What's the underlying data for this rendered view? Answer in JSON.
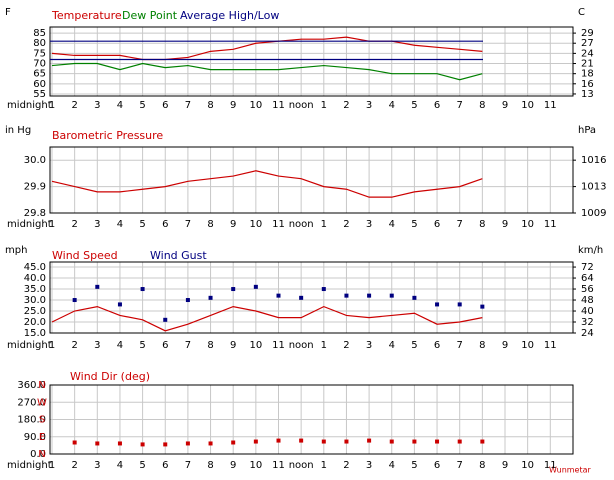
{
  "chart_data": [
    {
      "type": "line",
      "y_label": "F",
      "y2_label": "C",
      "categories": [
        "midnight",
        "1",
        "2",
        "3",
        "4",
        "5",
        "6",
        "7",
        "8",
        "9",
        "10",
        "11",
        "noon",
        "1",
        "2",
        "3",
        "4",
        "5",
        "6",
        "7",
        "8",
        "9",
        "10",
        "11"
      ],
      "ylim": [
        54,
        88
      ],
      "yticks": [
        55,
        60,
        65,
        70,
        75,
        80,
        85
      ],
      "y2lim": [
        12.22,
        31.11
      ],
      "y2ticks": [
        {
          "value": 12.78,
          "label": "13"
        },
        {
          "value": 15.56,
          "label": "16"
        },
        {
          "value": 18.33,
          "label": "18"
        },
        {
          "value": 21.11,
          "label": "21"
        },
        {
          "value": 23.89,
          "label": "24"
        },
        {
          "value": 26.67,
          "label": "27"
        },
        {
          "value": 29.44,
          "label": "29"
        }
      ],
      "grid": true,
      "series": [
        {
          "name": "Temperature",
          "color": "#cc0000",
          "style": "line",
          "values": [
            null,
            75,
            74,
            74,
            74,
            72,
            72,
            73,
            76,
            77,
            80,
            81,
            82,
            82,
            83,
            81,
            81,
            79,
            78,
            77,
            76,
            null,
            null,
            null
          ]
        },
        {
          "name": "Dew Point",
          "color": "#008000",
          "style": "line",
          "values": [
            null,
            69,
            70,
            70,
            67,
            70,
            68,
            69,
            67,
            67,
            67,
            67,
            68,
            69,
            68,
            67,
            65,
            65,
            65,
            62,
            65,
            null,
            null,
            null
          ]
        },
        {
          "name": "Average High/Low",
          "color": "#000080",
          "style": "hlines",
          "high": 81,
          "low": 72
        }
      ]
    },
    {
      "type": "line",
      "y_label": "in Hg",
      "y2_label": "hPa",
      "categories": [
        "midnight",
        "1",
        "2",
        "3",
        "4",
        "5",
        "6",
        "7",
        "8",
        "9",
        "10",
        "11",
        "noon",
        "1",
        "2",
        "3",
        "4",
        "5",
        "6",
        "7",
        "8",
        "9",
        "10",
        "11"
      ],
      "ylim": [
        29.8,
        30.05
      ],
      "yticks": [
        29.8,
        29.9,
        {
          "value": 30,
          "label": "30.0"
        }
      ],
      "y2lim": [
        1009.14,
        1017.61
      ],
      "y2ticks": [
        {
          "value": 1009.14,
          "label": "1009"
        },
        {
          "value": 1012.53,
          "label": "1013"
        },
        {
          "value": 1015.92,
          "label": "1016"
        }
      ],
      "grid": true,
      "series": [
        {
          "name": "Barometric Pressure",
          "color": "#cc0000",
          "style": "line",
          "values": [
            null,
            29.92,
            29.9,
            29.88,
            29.88,
            29.89,
            29.9,
            29.92,
            29.93,
            29.94,
            29.96,
            29.94,
            29.93,
            29.9,
            29.89,
            29.86,
            29.86,
            29.88,
            29.89,
            29.9,
            29.93,
            null,
            null,
            null
          ]
        }
      ]
    },
    {
      "type": "line",
      "y_label": "mph",
      "y2_label": "km/h",
      "categories": [
        "midnight",
        "1",
        "2",
        "3",
        "4",
        "5",
        "6",
        "7",
        "8",
        "9",
        "10",
        "11",
        "noon",
        "1",
        "2",
        "3",
        "4",
        "5",
        "6",
        "7",
        "8",
        "9",
        "10",
        "11"
      ],
      "ylim": [
        15,
        47.3
      ],
      "yticks": [
        {
          "value": 15,
          "label": "15.0"
        },
        {
          "value": 20,
          "label": "20.0"
        },
        {
          "value": 25,
          "label": "25.0"
        },
        {
          "value": 30,
          "label": "30.0"
        },
        {
          "value": 35,
          "label": "35.0"
        },
        {
          "value": 40,
          "label": "40.0"
        },
        {
          "value": 45,
          "label": "45.0"
        }
      ],
      "y2lim": [
        24.14,
        76.12
      ],
      "y2ticks": [
        {
          "value": 24.14,
          "label": "24"
        },
        {
          "value": 32.19,
          "label": "32"
        },
        {
          "value": 40.23,
          "label": "40"
        },
        {
          "value": 48.28,
          "label": "48"
        },
        {
          "value": 56.33,
          "label": "56"
        },
        {
          "value": 64.37,
          "label": "64"
        },
        {
          "value": 72.42,
          "label": "72"
        }
      ],
      "grid": true,
      "series": [
        {
          "name": "Wind Speed",
          "color": "#cc0000",
          "style": "line",
          "values": [
            null,
            20,
            25,
            27,
            23,
            21,
            16,
            19,
            23,
            27,
            25,
            22,
            22,
            27,
            23,
            22,
            23,
            24,
            19,
            20,
            22,
            null,
            null,
            null
          ]
        },
        {
          "name": "Wind Gust",
          "color": "#000080",
          "style": "points",
          "values": [
            null,
            null,
            30,
            36,
            28,
            35,
            21,
            30,
            31,
            35,
            36,
            32,
            31,
            35,
            32,
            32,
            32,
            31,
            28,
            28,
            27,
            null,
            null,
            null
          ]
        }
      ]
    },
    {
      "type": "scatter",
      "categories": [
        "midnight",
        "1",
        "2",
        "3",
        "4",
        "5",
        "6",
        "7",
        "8",
        "9",
        "10",
        "11",
        "noon",
        "1",
        "2",
        "3",
        "4",
        "5",
        "6",
        "7",
        "8",
        "9",
        "10",
        "11"
      ],
      "ylim": [
        0,
        360
      ],
      "yticks": [
        {
          "value": 0,
          "label": "0.0"
        },
        {
          "value": 90,
          "label": "90.0"
        },
        {
          "value": 180,
          "label": "180.0"
        },
        {
          "value": 270,
          "label": "270.0"
        },
        {
          "value": 360,
          "label": "360.0"
        }
      ],
      "compass": [
        {
          "value": 0,
          "label": "N"
        },
        {
          "value": 90,
          "label": "E"
        },
        {
          "value": 180,
          "label": "S"
        },
        {
          "value": 270,
          "label": "W"
        },
        {
          "value": 360,
          "label": "N"
        }
      ],
      "grid": true,
      "series": [
        {
          "name": "Wind Dir (deg)",
          "color": "#cc0000",
          "style": "points",
          "values": [
            null,
            null,
            60,
            55,
            55,
            50,
            50,
            55,
            55,
            60,
            65,
            70,
            70,
            65,
            65,
            70,
            65,
            65,
            65,
            65,
            65,
            null,
            null,
            null
          ]
        }
      ]
    }
  ],
  "footer": "Wunmetar"
}
